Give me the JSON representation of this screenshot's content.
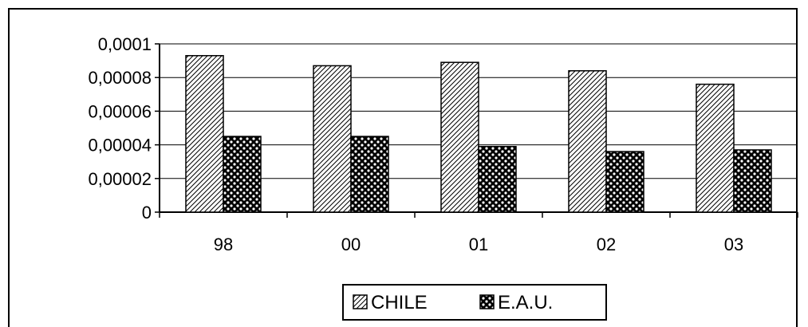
{
  "chart_data": {
    "type": "bar",
    "categories": [
      "98",
      "00",
      "01",
      "02",
      "03"
    ],
    "series": [
      {
        "name": "CHILE",
        "values": [
          9.3e-05,
          8.7e-05,
          8.9e-05,
          8.4e-05,
          7.6e-05
        ],
        "pattern": "diagonal-hatch"
      },
      {
        "name": "E.A.U.",
        "values": [
          4.5e-05,
          4.5e-05,
          3.9e-05,
          3.6e-05,
          3.7e-05
        ],
        "pattern": "checker-dots"
      }
    ],
    "ylim": [
      0,
      0.0001
    ],
    "yticks": [
      {
        "value": 0,
        "label": "0"
      },
      {
        "value": 2e-05,
        "label": "0,00002"
      },
      {
        "value": 4e-05,
        "label": "0,00004"
      },
      {
        "value": 6e-05,
        "label": "0,00006"
      },
      {
        "value": 8e-05,
        "label": "0,00008"
      },
      {
        "value": 0.0001,
        "label": "0,0001"
      }
    ],
    "grid": true,
    "legend_position": "bottom",
    "title": "",
    "xlabel": "",
    "ylabel": "",
    "colors": {
      "bar_stroke": "#000000",
      "background": "#ffffff",
      "gridline": "#000000"
    }
  }
}
